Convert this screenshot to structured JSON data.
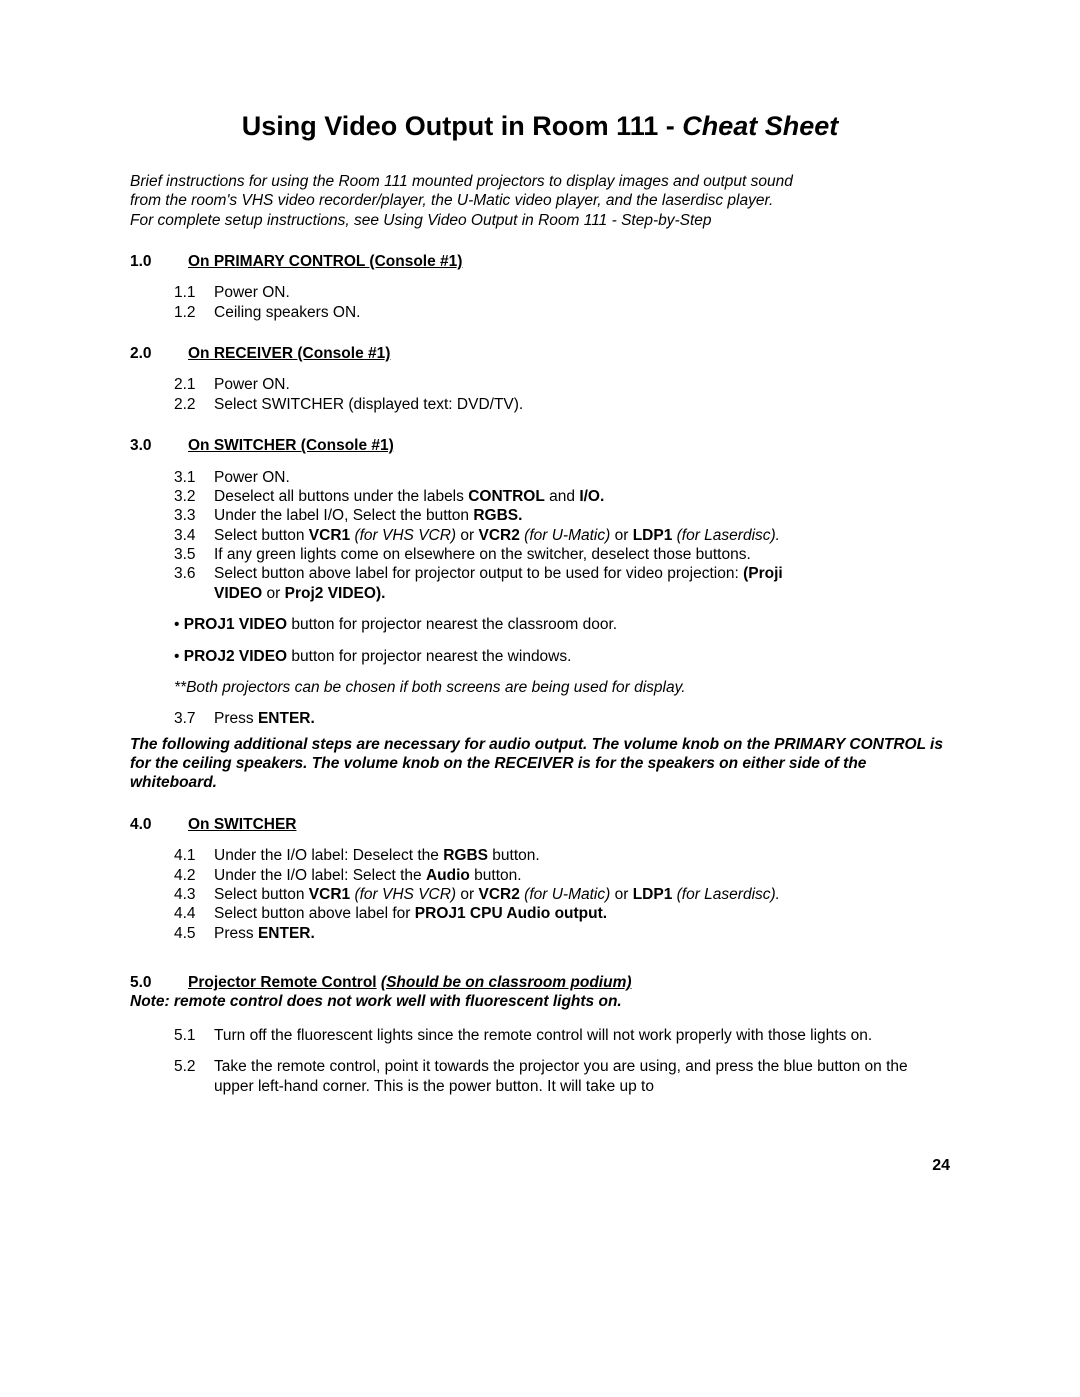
{
  "title_plain": "Using Video Output in Room 111 - ",
  "title_italic": "Cheat Sheet",
  "intro_l1": "Brief instructions for using the Room 111 mounted projectors to display images and output sound",
  "intro_l2": "from the room's VHS video recorder/player, the U-Matic video player, and the laserdisc player.",
  "intro_l3": "For complete setup instructions, see Using Video Output in Room 111 - Step-by-Step",
  "s1": {
    "num": "1.0",
    "label": "On PRIMARY CONTROL (Console #1)",
    "i1n": "1.1",
    "i1": "Power ON.",
    "i2n": "1.2",
    "i2": "Ceiling speakers ON."
  },
  "s2": {
    "num": "2.0",
    "label": "On RECEIVER (Console #1)",
    "i1n": "2.1",
    "i1": "Power ON.",
    "i2n": "2.2",
    "i2": "Select SWITCHER (displayed text:  DVD/TV)."
  },
  "s3": {
    "num": "3.0",
    "label": "On SWITCHER (Console #1)",
    "i1n": "3.1",
    "i1": "Power ON.",
    "i2n": "3.2",
    "i2a": "Deselect all buttons under the labels ",
    "i2b": "CONTROL",
    "i2c": " and ",
    "i2d": "I/O.",
    "i3n": "3.3",
    "i3a": "Under the label I/O, Select the button ",
    "i3b": "RGBS.",
    "i4n": "3.4",
    "i4a": "Select button ",
    "i4b": "VCR1",
    "i4c": "  (for VHS VCR)",
    "i4d": " or ",
    "i4e": "VCR2",
    "i4f": "  (for U-Matic)",
    "i4g": " or ",
    "i4h": "LDP1",
    "i4i": "  (for Laserdisc).",
    "i5n": "3.5",
    "i5": "If any green lights come on elsewhere on the switcher, deselect those buttons.",
    "i6n": "3.6",
    "i6a": "Select button above label for projector output to be used for video projection:  ",
    "i6b": "(Proji",
    "i6c": "VIDEO",
    "i6d": " or ",
    "i6e": "Proj2 VIDEO).",
    "b1a": "PROJ1 VIDEO",
    "b1b": " button for projector nearest the classroom door.",
    "b2a": "PROJ2 VIDEO",
    "b2b": " button for projector nearest the windows.",
    "note": "**Both projectors can be chosen if both screens are being used for display.",
    "i7n": "3.7",
    "i7a": "Press ",
    "i7b": "ENTER."
  },
  "audio_note": "The following additional steps are necessary for audio output.   The volume knob on the PRIMARY CONTROL is for the ceiling speakers.   The volume knob on the RECEIVER is for the speakers on either side of the whiteboard.",
  "s4": {
    "num": "4.0",
    "label": "On SWITCHER",
    "i1n": "4.1",
    "i1a": "Under the I/O label:  Deselect the ",
    "i1b": "RGBS",
    "i1c": " button.",
    "i2n": "4.2",
    "i2a": "Under the I/O label:  Select the ",
    "i2b": "Audio",
    "i2c": " button.",
    "i3n": "4.3",
    "i3a": "Select button ",
    "i3b": "VCR1",
    "i3c": "  (for VHS VCR)",
    "i3d": " or ",
    "i3e": "VCR2",
    "i3f": "  (for U-Matic)",
    "i3g": " or ",
    "i3h": "LDP1",
    "i3i": "  (for Laserdisc).",
    "i4n": "4.4",
    "i4a": "Select button above label for ",
    "i4b": "PROJ1 CPU Audio output.",
    "i5n": "4.5",
    "i5a": "Press ",
    "i5b": "ENTER."
  },
  "s5": {
    "num": "5.0",
    "label": "Projector Remote Control",
    "label2": "(Should be on classroom podium)",
    "note": "Note: remote control does not work well with fluorescent lights on.",
    "i1n": "5.1",
    "i1": "Turn off the fluorescent lights since the remote control will not work properly with those lights on.",
    "i2n": "5.2",
    "i2": "Take the remote control, point it towards the projector you are using, and press the blue button on the upper left-hand corner.  This is the power button.  It will take up to"
  },
  "page": "24"
}
